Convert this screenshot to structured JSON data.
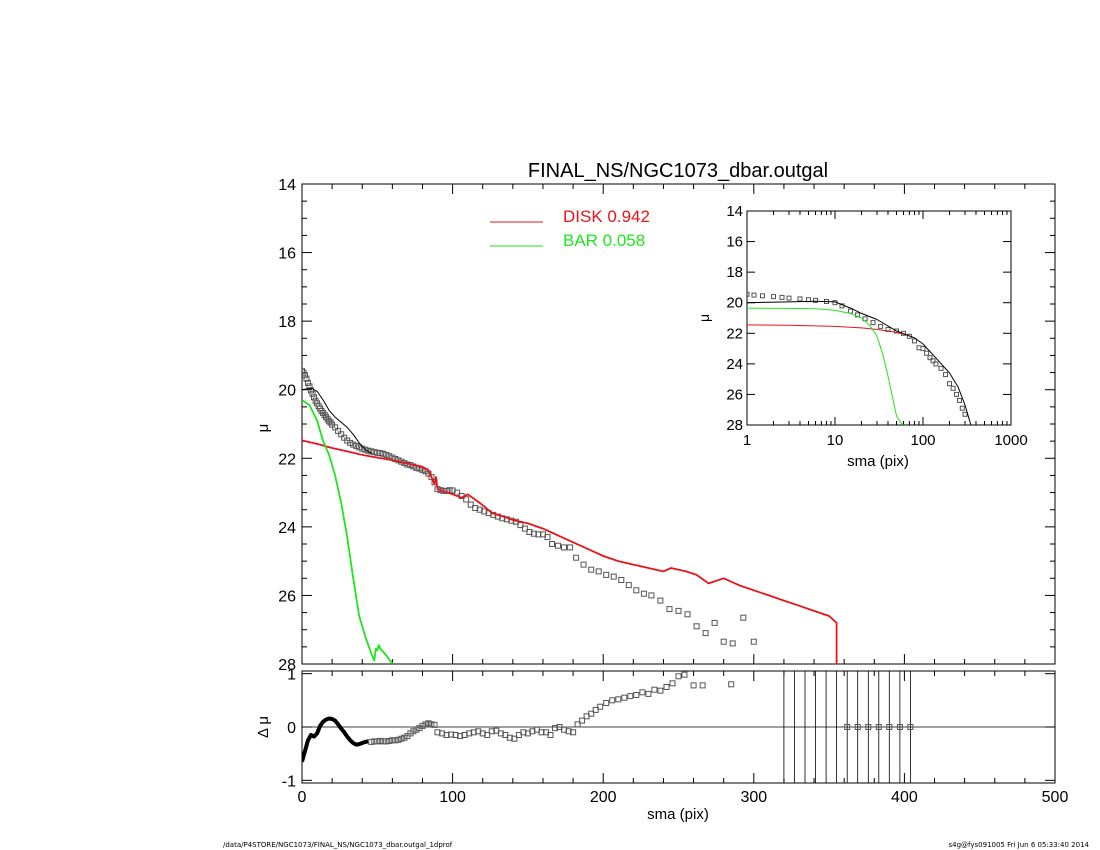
{
  "footer": {
    "left": "/data/P4STORE/NGC1073/FINAL_NS/NGC1073_dbar.outgal_1dprof",
    "right": "s4g@fys091005  Fri Jun  6 05:33:40 2014"
  },
  "chart_data": [
    {
      "id": "main",
      "type": "line",
      "title": "FINAL_NS/NGC1073_dbar.outgal",
      "xlabel": "",
      "ylabel": "μ",
      "xlim": [
        0,
        500
      ],
      "ylim": [
        28,
        14
      ],
      "y_inverted": true,
      "yticks": [
        14,
        16,
        18,
        20,
        22,
        24,
        26,
        28
      ],
      "legend": {
        "placement": "top-center",
        "entries": [
          {
            "label": "DISK  0.942",
            "color": "#e8141a"
          },
          {
            "label": "BAR  0.058",
            "color": "#1ee61e"
          }
        ]
      },
      "series": [
        {
          "kind": "points",
          "color": "#555555",
          "x": [
            0,
            1,
            2,
            3,
            4,
            5,
            6,
            7,
            8,
            9,
            10,
            11,
            12,
            13,
            14,
            15,
            16,
            17,
            18,
            19,
            20,
            22,
            24,
            26,
            28,
            30,
            32,
            34,
            36,
            38,
            40,
            42,
            44,
            46,
            48,
            50,
            52,
            54,
            56,
            58,
            60,
            62,
            64,
            66,
            68,
            70,
            72,
            74,
            76,
            78,
            80,
            82,
            84,
            86,
            88,
            90,
            92,
            94,
            96,
            98,
            100,
            103,
            106,
            109,
            112,
            115,
            118,
            121,
            124,
            127,
            130,
            133,
            136,
            139,
            142,
            145,
            148,
            151,
            154,
            157,
            160,
            163,
            166,
            170,
            174,
            178,
            182,
            187,
            192,
            197,
            202,
            207,
            212,
            217,
            222,
            227,
            232,
            238,
            244,
            250,
            256,
            262,
            268,
            274,
            280,
            286,
            293,
            300
          ],
          "y": [
            19.45,
            19.5,
            19.58,
            19.68,
            19.8,
            19.9,
            20.02,
            20.12,
            20.22,
            20.32,
            20.4,
            20.48,
            20.55,
            20.62,
            20.68,
            20.74,
            20.8,
            20.86,
            20.92,
            20.96,
            21.02,
            21.1,
            21.2,
            21.3,
            21.4,
            21.48,
            21.55,
            21.6,
            21.64,
            21.68,
            21.72,
            21.75,
            21.78,
            21.8,
            21.82,
            21.84,
            21.85,
            21.87,
            21.9,
            21.94,
            21.98,
            22.02,
            22.06,
            22.1,
            22.14,
            22.18,
            22.2,
            22.24,
            22.28,
            22.3,
            22.34,
            22.38,
            22.45,
            22.55,
            22.7,
            22.9,
            22.93,
            22.95,
            22.95,
            22.93,
            22.94,
            23.0,
            23.1,
            23.2,
            23.35,
            23.45,
            23.5,
            23.55,
            23.6,
            23.65,
            23.7,
            23.75,
            23.78,
            23.82,
            23.85,
            23.95,
            24.05,
            24.15,
            24.2,
            24.22,
            24.22,
            24.3,
            24.5,
            24.55,
            24.6,
            24.6,
            24.9,
            25.1,
            25.25,
            25.3,
            25.4,
            25.45,
            25.55,
            25.7,
            25.85,
            25.95,
            26.0,
            26.15,
            26.4,
            26.45,
            26.55,
            26.9,
            27.1,
            26.8,
            27.35,
            27.4,
            26.65,
            27.35
          ]
        },
        {
          "kind": "line",
          "name": "",
          "color": "#000000",
          "width": 1,
          "x": [
            0,
            3,
            6,
            10,
            14,
            18,
            22,
            26,
            30,
            34,
            38,
            42,
            46
          ],
          "y": [
            20.0,
            19.98,
            19.95,
            20.05,
            20.3,
            20.6,
            20.8,
            20.95,
            21.1,
            21.3,
            21.55,
            21.75,
            21.85
          ]
        },
        {
          "kind": "line",
          "name": "DISK",
          "color": "#e8141a",
          "width": 1.8,
          "x": [
            0,
            10,
            20,
            30,
            40,
            50,
            60,
            70,
            80,
            84,
            88,
            89,
            90,
            100,
            106,
            110,
            118,
            121,
            126,
            134,
            140,
            150,
            160,
            165,
            170,
            180,
            190,
            200,
            210,
            220,
            230,
            235,
            240,
            245,
            255,
            262,
            270,
            280,
            290,
            300,
            310,
            320,
            330,
            340,
            350,
            355,
            355
          ],
          "y": [
            21.48,
            21.58,
            21.7,
            21.8,
            21.9,
            21.98,
            22.06,
            22.15,
            22.25,
            22.35,
            22.75,
            22.55,
            22.9,
            23.05,
            23.15,
            23.05,
            23.3,
            23.4,
            23.6,
            23.7,
            23.8,
            23.9,
            24.05,
            24.15,
            24.25,
            24.45,
            24.65,
            24.85,
            25.0,
            25.1,
            25.2,
            25.25,
            25.3,
            25.2,
            25.3,
            25.4,
            25.65,
            25.5,
            25.7,
            25.85,
            26.0,
            26.15,
            26.3,
            26.45,
            26.6,
            26.8,
            28.0
          ]
        },
        {
          "kind": "line",
          "name": "BAR",
          "color": "#1ee61e",
          "width": 1.8,
          "x": [
            0,
            5,
            10,
            14,
            18,
            22,
            26,
            30,
            34,
            38,
            42,
            46,
            48,
            49,
            50,
            51,
            52,
            56,
            60
          ],
          "y": [
            20.3,
            20.45,
            20.9,
            21.5,
            21.9,
            22.5,
            23.3,
            24.3,
            25.5,
            26.6,
            27.2,
            27.7,
            27.9,
            27.55,
            27.6,
            27.45,
            27.55,
            27.75,
            28.0
          ]
        }
      ]
    },
    {
      "id": "inset",
      "type": "line",
      "xlabel": "sma (pix)",
      "ylabel": "μ",
      "x_scale": "log",
      "xlim": [
        1,
        1000
      ],
      "xticks": [
        1,
        10,
        100,
        1000
      ],
      "ylim": [
        28,
        14
      ],
      "y_inverted": true,
      "yticks": [
        14,
        16,
        18,
        20,
        22,
        24,
        26,
        28
      ],
      "series": [
        {
          "kind": "points",
          "color": "#555555",
          "x": [
            1,
            1.2,
            1.5,
            2,
            2.5,
            3,
            4,
            5,
            6,
            8,
            10,
            12,
            15,
            18,
            22,
            27,
            33,
            40,
            50,
            60,
            70,
            80,
            90,
            100,
            110,
            120,
            130,
            140,
            160,
            180,
            200,
            220,
            240,
            260,
            280,
            300
          ],
          "y": [
            19.45,
            19.5,
            19.55,
            19.6,
            19.65,
            19.7,
            19.75,
            19.8,
            19.85,
            19.92,
            20.0,
            20.2,
            20.55,
            20.8,
            21.05,
            21.3,
            21.55,
            21.75,
            21.85,
            22.0,
            22.2,
            22.5,
            22.95,
            23.0,
            23.3,
            23.6,
            23.8,
            24.0,
            24.3,
            24.7,
            25.3,
            25.6,
            26.0,
            26.4,
            26.9,
            27.3
          ]
        },
        {
          "kind": "line",
          "name": "",
          "color": "#000000",
          "width": 1,
          "x": [
            1,
            3,
            6,
            10,
            15,
            20,
            30,
            50,
            80,
            100,
            150,
            200,
            250,
            300,
            350
          ],
          "y": [
            20.0,
            19.95,
            19.9,
            19.95,
            20.35,
            20.7,
            21.1,
            21.85,
            22.3,
            22.7,
            23.8,
            24.6,
            25.5,
            26.7,
            28.0
          ]
        },
        {
          "kind": "line",
          "name": "DISK",
          "color": "#e8141a",
          "width": 1,
          "x": [
            1,
            3,
            10,
            20,
            30,
            40,
            50,
            60
          ],
          "y": [
            21.45,
            21.47,
            21.55,
            21.65,
            21.75,
            21.85,
            21.95,
            22.05
          ]
        },
        {
          "kind": "line",
          "name": "BAR",
          "color": "#1ee61e",
          "width": 1,
          "x": [
            1,
            3,
            6,
            10,
            15,
            20,
            25,
            30,
            35,
            40,
            45,
            50,
            55,
            60
          ],
          "y": [
            20.35,
            20.37,
            20.4,
            20.5,
            20.7,
            21.0,
            21.5,
            22.2,
            23.4,
            24.8,
            26.2,
            27.4,
            27.8,
            28.0
          ]
        }
      ]
    },
    {
      "id": "residuals",
      "type": "scatter",
      "xlabel": "sma (pix)",
      "ylabel": "Δ μ",
      "xlim": [
        0,
        500
      ],
      "xticks": [
        0,
        100,
        200,
        300,
        400,
        500
      ],
      "ylim": [
        -1,
        1
      ],
      "yticks": [
        -1,
        0,
        1
      ],
      "zero_line": true,
      "series": [
        {
          "kind": "thick-line",
          "color": "#000000",
          "x": [
            0,
            2,
            4,
            6,
            8,
            10,
            12,
            14,
            16,
            18,
            20,
            22,
            24,
            26,
            28,
            30,
            32,
            34,
            36,
            38,
            40,
            42,
            44
          ],
          "y": [
            -0.65,
            -0.45,
            -0.25,
            -0.15,
            -0.18,
            -0.12,
            0.02,
            0.1,
            0.14,
            0.16,
            0.15,
            0.12,
            0.05,
            -0.03,
            -0.1,
            -0.18,
            -0.25,
            -0.3,
            -0.33,
            -0.32,
            -0.3,
            -0.28,
            -0.27
          ]
        },
        {
          "kind": "points",
          "color": "#555555",
          "x": [
            46,
            48,
            50,
            52,
            54,
            56,
            58,
            60,
            62,
            64,
            66,
            68,
            70,
            72,
            74,
            76,
            78,
            80,
            82,
            84,
            86,
            88,
            90,
            93,
            96,
            99,
            102,
            105,
            108,
            111,
            114,
            117,
            120,
            123,
            126,
            129,
            132,
            135,
            138,
            141,
            144,
            147,
            150,
            153,
            156,
            159,
            162,
            165,
            168,
            171,
            174,
            177,
            180,
            183,
            186,
            189,
            192,
            195,
            198,
            202,
            206,
            210,
            214,
            218,
            222,
            226,
            230,
            234,
            238,
            242,
            246,
            250,
            254,
            260,
            266,
            285
          ],
          "y": [
            -0.28,
            -0.27,
            -0.27,
            -0.26,
            -0.27,
            -0.27,
            -0.26,
            -0.25,
            -0.25,
            -0.24,
            -0.22,
            -0.2,
            -0.17,
            -0.12,
            -0.08,
            -0.05,
            -0.02,
            0.02,
            0.05,
            0.07,
            0.05,
            0.04,
            -0.1,
            -0.12,
            -0.15,
            -0.14,
            -0.15,
            -0.17,
            -0.15,
            -0.12,
            -0.1,
            -0.08,
            -0.12,
            -0.15,
            -0.08,
            -0.07,
            -0.12,
            -0.15,
            -0.2,
            -0.22,
            -0.15,
            -0.1,
            -0.12,
            -0.08,
            -0.05,
            -0.1,
            -0.1,
            -0.15,
            -0.02,
            0.0,
            -0.05,
            -0.08,
            -0.1,
            0.05,
            0.12,
            0.2,
            0.25,
            0.32,
            0.38,
            0.45,
            0.5,
            0.52,
            0.55,
            0.58,
            0.6,
            0.65,
            0.62,
            0.7,
            0.68,
            0.75,
            0.82,
            0.95,
            0.98,
            0.78,
            0.78,
            0.8
          ]
        },
        {
          "kind": "vertical-lines",
          "color": "#000000",
          "x": [
            320,
            327,
            334,
            341,
            348,
            355,
            362,
            369,
            376,
            383,
            390,
            397,
            404
          ]
        },
        {
          "kind": "points",
          "color": "#555555",
          "x": [
            362,
            369,
            376,
            383,
            390,
            397,
            404
          ],
          "y": [
            0,
            0,
            0,
            0,
            0,
            0,
            0
          ]
        }
      ]
    }
  ]
}
